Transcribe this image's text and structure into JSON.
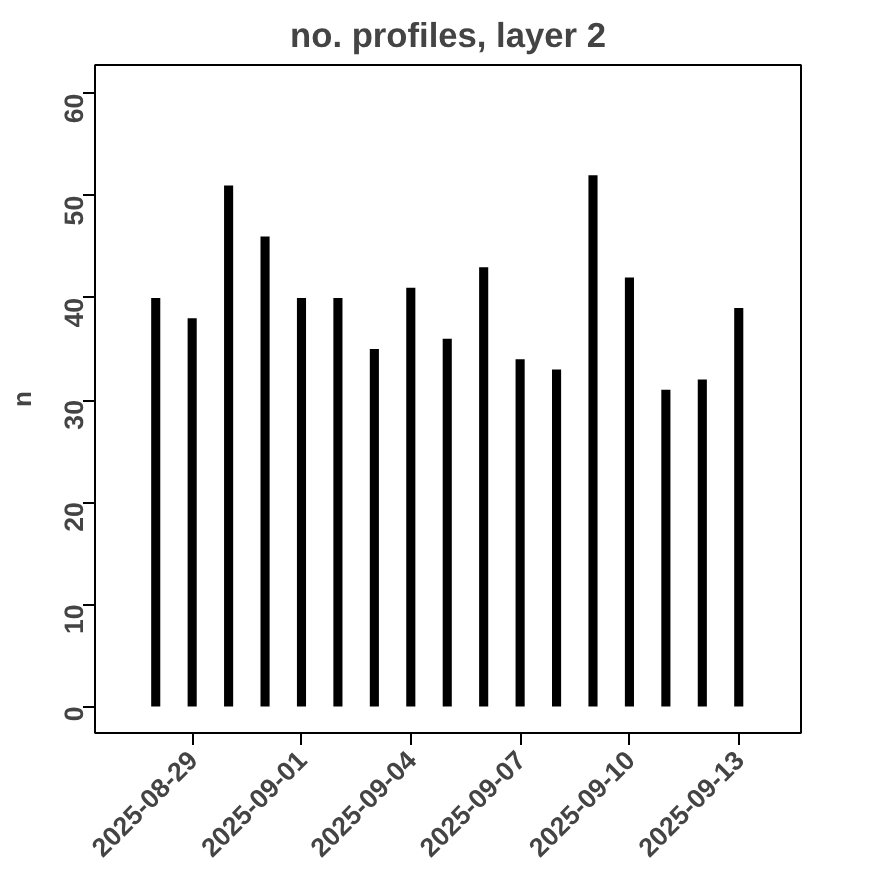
{
  "chart_data": {
    "type": "bar",
    "title": "no. profiles, layer 2",
    "ylabel": "n",
    "x": [
      "2025-08-28",
      "2025-08-29",
      "2025-08-30",
      "2025-08-31",
      "2025-09-01",
      "2025-09-02",
      "2025-09-03",
      "2025-09-04",
      "2025-09-05",
      "2025-09-06",
      "2025-09-07",
      "2025-09-08",
      "2025-09-09",
      "2025-09-10",
      "2025-09-11",
      "2025-09-12",
      "2025-09-13"
    ],
    "values": [
      40,
      38,
      51,
      46,
      40,
      40,
      35,
      41,
      36,
      43,
      34,
      33,
      52,
      42,
      31,
      32,
      39
    ],
    "color": "#000000",
    "xlim": [
      "2025-08-26T08:00",
      "2025-09-14T17:00"
    ],
    "xticks": [
      "2025-08-29",
      "2025-09-01",
      "2025-09-04",
      "2025-09-07",
      "2025-09-10",
      "2025-09-13"
    ],
    "ylim": [
      -2.6,
      62.8
    ],
    "yticks": [
      0,
      10,
      20,
      30,
      40,
      50,
      60
    ],
    "grid": false
  }
}
